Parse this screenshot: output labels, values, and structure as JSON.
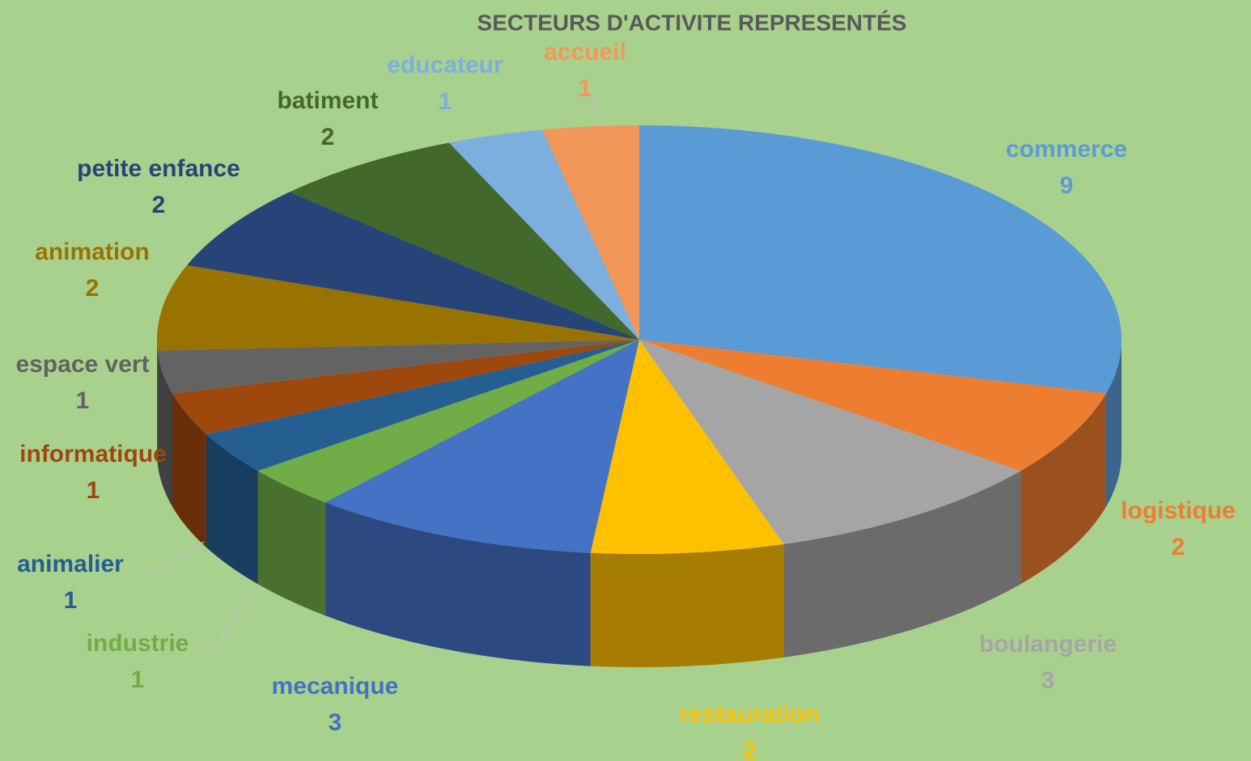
{
  "chart_data": {
    "type": "pie",
    "title": "SECTEURS D'ACTIVITE REPRESENTÉS",
    "categories": [
      "commerce",
      "logistique",
      "boulangerie",
      "restauration",
      "mecanique",
      "industrie",
      "animalier",
      "informatique",
      "espace vert",
      "animation",
      "petite enfance",
      "batiment",
      "educateur",
      "accueil"
    ],
    "values": [
      9,
      2,
      3,
      2,
      3,
      1,
      1,
      1,
      1,
      2,
      2,
      2,
      1,
      1
    ],
    "colors": [
      "#5b9bd5",
      "#ed7d31",
      "#a5a5a5",
      "#ffc000",
      "#4472c4",
      "#70ad47",
      "#255e91",
      "#9e480e",
      "#636363",
      "#997300",
      "#264478",
      "#43682b",
      "#7cafdd",
      "#f1975a"
    ]
  }
}
